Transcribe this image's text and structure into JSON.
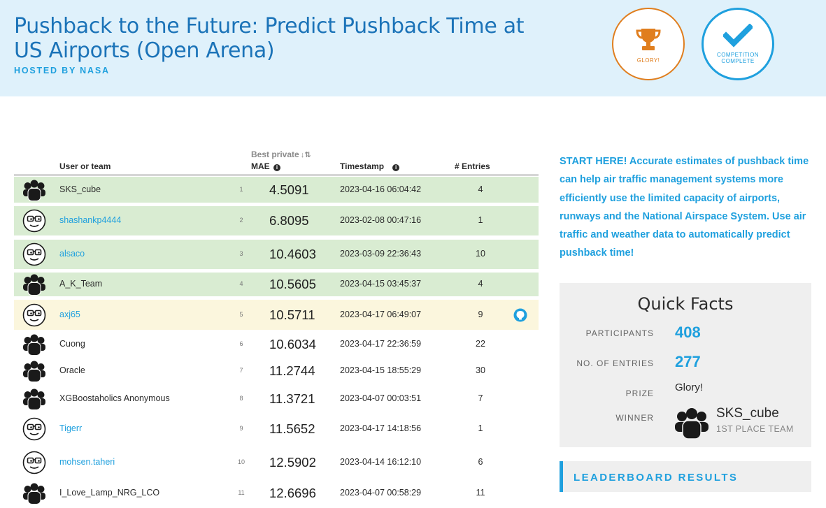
{
  "header": {
    "title": "Pushback to the Future: Predict Pushback Time at US Airports (Open Arena)",
    "hosted_prefix": "HOSTED BY ",
    "hosted_by": "NASA"
  },
  "badges": {
    "glory": {
      "label": "GLORY!",
      "icon": "trophy-icon",
      "color": "#e07e1e"
    },
    "complete": {
      "label_line1": "COMPETITION",
      "label_line2": "COMPLETE",
      "icon": "checkmark-icon",
      "color": "#1fa0de"
    }
  },
  "leaderboard": {
    "columns": {
      "user": "User or team",
      "best_private": "Best private",
      "mae": "MAE",
      "timestamp": "Timestamp",
      "entries": "# Entries"
    },
    "rows": [
      {
        "rank": "1",
        "name": "SKS_cube",
        "score": "4.5091",
        "timestamp": "2023-04-16 06:04:42",
        "entries": "4"
      },
      {
        "rank": "2",
        "name": "shashankp4444",
        "score": "6.8095",
        "timestamp": "2023-02-08 00:47:16",
        "entries": "1"
      },
      {
        "rank": "3",
        "name": "alsaco",
        "score": "10.4603",
        "timestamp": "2023-03-09 22:36:43",
        "entries": "10"
      },
      {
        "rank": "4",
        "name": "A_K_Team",
        "score": "10.5605",
        "timestamp": "2023-04-15 03:45:37",
        "entries": "4"
      },
      {
        "rank": "5",
        "name": "axj65",
        "score": "10.5711",
        "timestamp": "2023-04-17 06:49:07",
        "entries": "9"
      },
      {
        "rank": "6",
        "name": "Cuong",
        "score": "10.6034",
        "timestamp": "2023-04-17 22:36:59",
        "entries": "22"
      },
      {
        "rank": "7",
        "name": "Oracle",
        "score": "11.2744",
        "timestamp": "2023-04-15 18:55:29",
        "entries": "30"
      },
      {
        "rank": "8",
        "name": "XGBoostaholics Anonymous",
        "score": "11.3721",
        "timestamp": "2023-04-07 00:03:51",
        "entries": "7"
      },
      {
        "rank": "9",
        "name": "Tigerr",
        "score": "11.5652",
        "timestamp": "2023-04-17 14:18:56",
        "entries": "1"
      },
      {
        "rank": "10",
        "name": "mohsen.taheri",
        "score": "12.5902",
        "timestamp": "2023-04-14 16:12:10",
        "entries": "6"
      },
      {
        "rank": "11",
        "name": "I_Love_Lamp_NRG_LCO",
        "score": "12.6696",
        "timestamp": "2023-04-07 00:58:29",
        "entries": "11"
      }
    ]
  },
  "intro": {
    "text": "START HERE! Accurate estimates of pushback time can help air traffic management systems more efficiently use the limited capacity of airports, runways and the National Airspace System. Use air traffic and weather data to automatically predict pushback time!"
  },
  "quick_facts": {
    "title": "Quick Facts",
    "participants_label": "PARTICIPANTS",
    "participants": "408",
    "entries_label": "NO. OF ENTRIES",
    "entries": "277",
    "prize_label": "PRIZE",
    "prize": "Glory!",
    "winner_label": "WINNER",
    "winner_name": "SKS_cube",
    "winner_sub": "1ST PLACE TEAM"
  },
  "leaderboard_results": {
    "label": "LEADERBOARD RESULTS"
  },
  "colors": {
    "brand_blue": "#1b73b8",
    "link_blue": "#1fa0de",
    "glory_orange": "#e07e1e",
    "prize_zone_green": "#d9ecd2",
    "highlight_yellow": "#fbf6dd"
  }
}
